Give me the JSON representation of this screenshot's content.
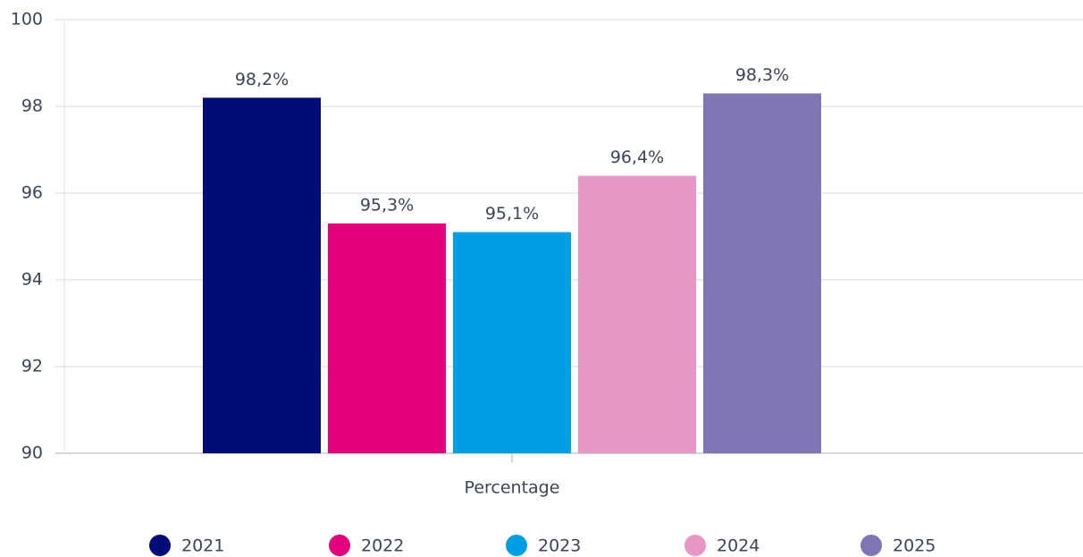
{
  "chart_data": {
    "type": "bar",
    "categories": [
      "Percentage"
    ],
    "series": [
      {
        "name": "2021",
        "color": "#000c78",
        "values": [
          98.2
        ],
        "value_labels": [
          "98,2%"
        ]
      },
      {
        "name": "2022",
        "color": "#e5007e",
        "values": [
          95.3
        ],
        "value_labels": [
          "95,3%"
        ]
      },
      {
        "name": "2023",
        "color": "#009fe3",
        "values": [
          95.1
        ],
        "value_labels": [
          "95,1%"
        ]
      },
      {
        "name": "2024",
        "color": "#e896c3",
        "values": [
          96.4
        ],
        "value_labels": [
          "96,4%"
        ]
      },
      {
        "name": "2025",
        "color": "#7f77b4",
        "values": [
          98.3
        ],
        "value_labels": [
          "98,3%"
        ]
      }
    ],
    "ylim": [
      90,
      100
    ],
    "yticks": [
      90,
      92,
      94,
      96,
      98,
      100
    ],
    "grid": true,
    "legend": "bottom"
  }
}
